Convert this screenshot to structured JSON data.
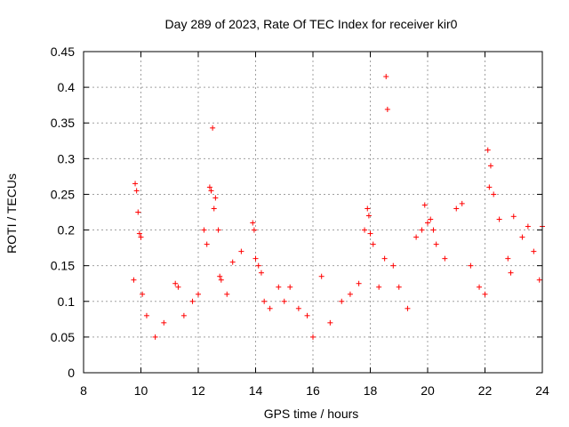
{
  "chart_data": {
    "type": "scatter",
    "title": "Day 289 of 2023, Rate Of TEC Index for receiver kir0",
    "xlabel": "GPS time / hours",
    "ylabel": "ROTI / TECUs",
    "xlim": [
      8,
      24
    ],
    "ylim": [
      0,
      0.45
    ],
    "x_ticks": [
      8,
      10,
      12,
      14,
      16,
      18,
      20,
      22,
      24
    ],
    "y_ticks": [
      0,
      0.05,
      0.1,
      0.15,
      0.2,
      0.25,
      0.3,
      0.35,
      0.4,
      0.45
    ],
    "x_tick_labels": [
      "8",
      "10",
      "12",
      "14",
      "16",
      "18",
      "20",
      "22",
      "24"
    ],
    "y_tick_labels": [
      "0",
      "0.05",
      "0.1",
      "0.15",
      "0.2",
      "0.25",
      "0.3",
      "0.35",
      "0.4",
      "0.45"
    ],
    "grid": true,
    "legend": "none",
    "marker": "+",
    "marker_color": "#ff0000",
    "series": [
      {
        "x": [
          9.75,
          9.8,
          9.85,
          9.9,
          9.95,
          10.0,
          10.05,
          10.2,
          10.5,
          10.8,
          11.2,
          11.3,
          11.5,
          11.8,
          12.0,
          12.2,
          12.3,
          12.4,
          12.45,
          12.5,
          12.55,
          12.6,
          12.7,
          12.75,
          12.8,
          13.0,
          13.2,
          13.5,
          13.9,
          13.95,
          14.0,
          14.1,
          14.2,
          14.3,
          14.5,
          14.8,
          15.0,
          15.2,
          15.5,
          15.8,
          16.0,
          16.3,
          16.6,
          17.0,
          17.3,
          17.6,
          17.8,
          17.9,
          17.95,
          18.0,
          18.1,
          18.3,
          18.5,
          18.55,
          18.6,
          18.8,
          19.0,
          19.3,
          19.6,
          19.8,
          19.9,
          20.0,
          20.1,
          20.2,
          20.3,
          20.6,
          21.0,
          21.2,
          21.5,
          21.8,
          22.0,
          22.1,
          22.15,
          22.2,
          22.3,
          22.5,
          22.8,
          22.9,
          23.0,
          23.3,
          23.5,
          23.7,
          23.9,
          24.0
        ],
        "y": [
          0.13,
          0.265,
          0.255,
          0.225,
          0.195,
          0.19,
          0.11,
          0.08,
          0.05,
          0.07,
          0.125,
          0.12,
          0.08,
          0.1,
          0.11,
          0.2,
          0.18,
          0.26,
          0.255,
          0.343,
          0.23,
          0.245,
          0.2,
          0.135,
          0.13,
          0.11,
          0.155,
          0.17,
          0.21,
          0.2,
          0.16,
          0.15,
          0.14,
          0.1,
          0.09,
          0.12,
          0.1,
          0.12,
          0.09,
          0.08,
          0.05,
          0.135,
          0.07,
          0.1,
          0.11,
          0.125,
          0.2,
          0.23,
          0.22,
          0.195,
          0.18,
          0.12,
          0.16,
          0.415,
          0.369,
          0.15,
          0.12,
          0.09,
          0.19,
          0.2,
          0.235,
          0.21,
          0.215,
          0.2,
          0.18,
          0.16,
          0.23,
          0.237,
          0.15,
          0.12,
          0.11,
          0.312,
          0.26,
          0.29,
          0.25,
          0.215,
          0.16,
          0.14,
          0.219,
          0.19,
          0.205,
          0.17,
          0.13,
          0.205
        ]
      }
    ]
  }
}
